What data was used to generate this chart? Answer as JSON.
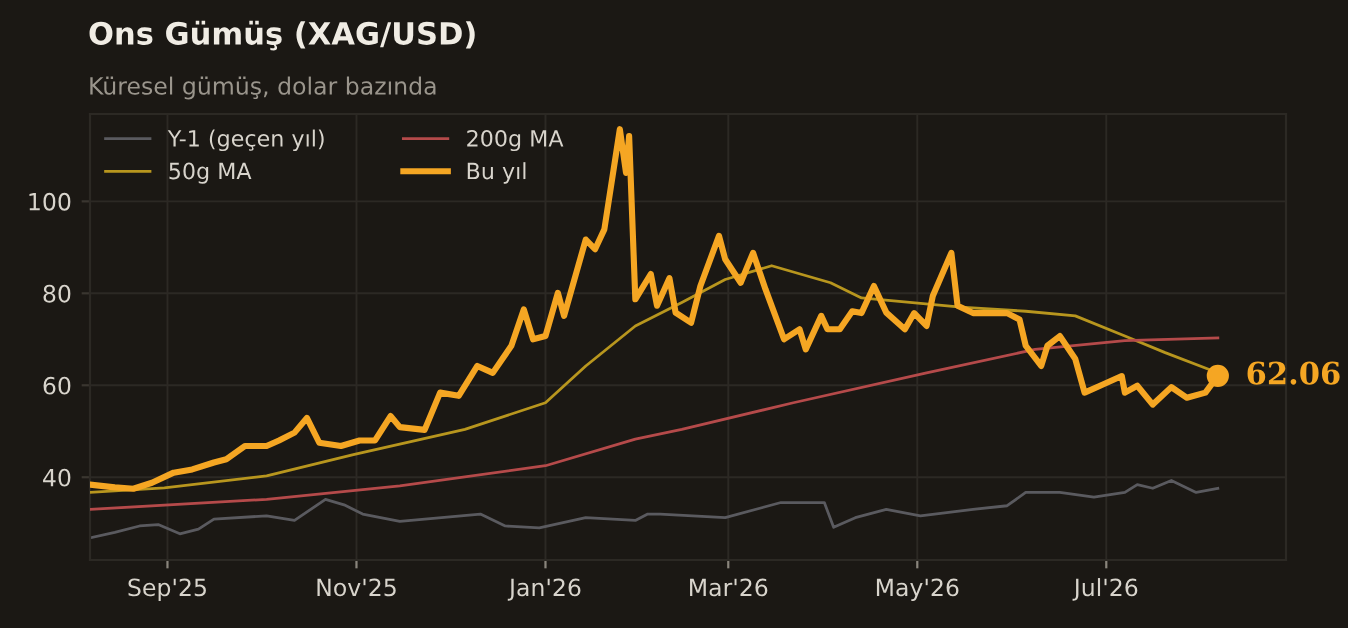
{
  "chart_data": {
    "type": "line",
    "title": "Ons Gümüş (XAG/USD)",
    "subtitle": "Küresel gümüş, dolar bazında",
    "xlim": [
      "2025-08-07",
      "2026-08-28"
    ],
    "xticks": [
      {
        "value": "2025-09-01",
        "label": "Sep'25"
      },
      {
        "value": "2025-11-01",
        "label": "Nov'25"
      },
      {
        "value": "2026-01-01",
        "label": "Jan'26"
      },
      {
        "value": "2026-03-01",
        "label": "Mar'26"
      },
      {
        "value": "2026-05-01",
        "label": "May'26"
      },
      {
        "value": "2026-07-01",
        "label": "Jul'26"
      }
    ],
    "ylim": [
      22,
      119
    ],
    "yticks": [
      40,
      60,
      80,
      100
    ],
    "grid": true,
    "legend": "top left",
    "marker": "none",
    "line_style": "solid",
    "series": [
      {
        "name": "Y-1 (geçen yıl)",
        "color": "#5a5a5f",
        "x": [
          "2025-08-07",
          "2025-08-15",
          "2025-08-23",
          "2025-08-29",
          "2025-09-05",
          "2025-09-11",
          "2025-09-16",
          "2025-10-03",
          "2025-10-12",
          "2025-10-22",
          "2025-10-28",
          "2025-11-03",
          "2025-11-15",
          "2025-12-11",
          "2025-12-19",
          "2025-12-30",
          "2026-01-14",
          "2026-01-30",
          "2026-02-03",
          "2026-02-07",
          "2026-02-28",
          "2026-03-18",
          "2026-04-01",
          "2026-04-04",
          "2026-04-11",
          "2026-04-21",
          "2026-05-02",
          "2026-05-19",
          "2026-05-30",
          "2026-06-05",
          "2026-06-16",
          "2026-06-27",
          "2026-07-07",
          "2026-07-11",
          "2026-07-16",
          "2026-07-22",
          "2026-07-30",
          "2026-08-06"
        ],
        "values": [
          26.8,
          28,
          29.4,
          29.7,
          27.7,
          28.7,
          30.9,
          31.6,
          30.6,
          35.2,
          34,
          32,
          30.4,
          32,
          29.4,
          29,
          31.2,
          30.6,
          32,
          32,
          31.2,
          34.5,
          34.5,
          29.1,
          31.2,
          33,
          31.6,
          33,
          33.8,
          36.7,
          36.7,
          35.7,
          36.7,
          38.4,
          37.6,
          39.3,
          36.7,
          37.6
        ]
      },
      {
        "name": "50g MA",
        "color": "#b8961e",
        "x": [
          "2025-08-07",
          "2025-08-31",
          "2025-10-03",
          "2025-10-31",
          "2025-12-06",
          "2026-01-01",
          "2026-01-14",
          "2026-01-30",
          "2026-02-14",
          "2026-02-28",
          "2026-03-15",
          "2026-04-03",
          "2026-04-13",
          "2026-05-15",
          "2026-06-05",
          "2026-06-21",
          "2026-07-07",
          "2026-07-20",
          "2026-08-03"
        ],
        "values": [
          36.7,
          37.7,
          40.3,
          44.9,
          50.4,
          56.2,
          64.2,
          72.9,
          78,
          83,
          86,
          82.3,
          79,
          77,
          76.1,
          75.1,
          70.7,
          67.1,
          63.5
        ]
      },
      {
        "name": "200g MA",
        "color": "#b54a4a",
        "x": [
          "2025-08-07",
          "2025-10-03",
          "2025-11-15",
          "2026-01-01",
          "2026-01-30",
          "2026-02-14",
          "2026-03-22",
          "2026-05-04",
          "2026-06-08",
          "2026-07-07",
          "2026-08-06"
        ],
        "values": [
          33,
          35.2,
          38.1,
          42.5,
          48.3,
          50.4,
          56.2,
          62.7,
          67.8,
          69.7,
          70.3
        ]
      },
      {
        "name": "Bu yıl",
        "color": "#f5a623",
        "x": [
          "2025-08-07",
          "2025-08-15",
          "2025-08-21",
          "2025-08-27",
          "2025-09-03",
          "2025-09-09",
          "2025-09-16",
          "2025-09-20",
          "2025-09-26",
          "2025-10-03",
          "2025-10-07",
          "2025-10-12",
          "2025-10-16",
          "2025-10-20",
          "2025-10-27",
          "2025-11-02",
          "2025-11-07",
          "2025-11-12",
          "2025-11-15",
          "2025-11-23",
          "2025-11-28",
          "2025-12-04",
          "2025-12-10",
          "2025-12-15",
          "2025-12-21",
          "2025-12-25",
          "2025-12-28",
          "2026-01-01",
          "2026-01-05",
          "2026-01-07",
          "2026-01-14",
          "2026-01-17",
          "2026-01-20",
          "2026-01-25",
          "2026-01-27",
          "2026-01-28",
          "2026-01-30",
          "2026-02-04",
          "2026-02-06",
          "2026-02-10",
          "2026-02-12",
          "2026-02-17",
          "2026-02-20",
          "2026-02-26",
          "2026-02-28",
          "2026-03-05",
          "2026-03-09",
          "2026-03-13",
          "2026-03-19",
          "2026-03-24",
          "2026-03-26",
          "2026-03-31",
          "2026-04-02",
          "2026-04-06",
          "2026-04-10",
          "2026-04-13",
          "2026-04-17",
          "2026-04-21",
          "2026-04-27",
          "2026-04-30",
          "2026-05-04",
          "2026-05-06",
          "2026-05-12",
          "2026-05-14",
          "2026-05-19",
          "2026-05-30",
          "2026-06-03",
          "2026-06-05",
          "2026-06-10",
          "2026-06-12",
          "2026-06-16",
          "2026-06-21",
          "2026-06-24",
          "2026-06-29",
          "2026-07-06",
          "2026-07-07",
          "2026-07-11",
          "2026-07-16",
          "2026-07-22",
          "2026-07-27",
          "2026-08-02",
          "2026-08-06"
        ],
        "values": [
          38.4,
          37.8,
          37.5,
          38.8,
          41,
          41.7,
          43.2,
          43.9,
          46.8,
          46.8,
          48,
          49.7,
          52.9,
          47.5,
          46.8,
          48,
          48,
          53.3,
          50.9,
          50.3,
          58.4,
          57.7,
          64.2,
          62.7,
          68.6,
          76.5,
          70,
          70.7,
          80.1,
          75.1,
          91.7,
          89.6,
          93.9,
          115.7,
          106.2,
          114.2,
          78.7,
          84.2,
          77.3,
          83.3,
          75.8,
          73.6,
          81.6,
          92.5,
          87.4,
          82.3,
          88.8,
          80.9,
          70,
          72.2,
          67.8,
          75.1,
          72.2,
          72.2,
          76.1,
          75.7,
          81.6,
          75.8,
          72.2,
          75.7,
          72.9,
          79.4,
          88.8,
          77.3,
          75.7,
          75.7,
          74.3,
          68.6,
          64.2,
          68.6,
          70.7,
          65.7,
          58.4,
          59.9,
          62,
          58.4,
          59.9,
          55.8,
          59.6,
          57.3,
          58.4,
          62.06
        ]
      }
    ],
    "annotations": [
      {
        "text": "62.06",
        "x": "2026-08-06",
        "y": 62.06
      }
    ]
  }
}
